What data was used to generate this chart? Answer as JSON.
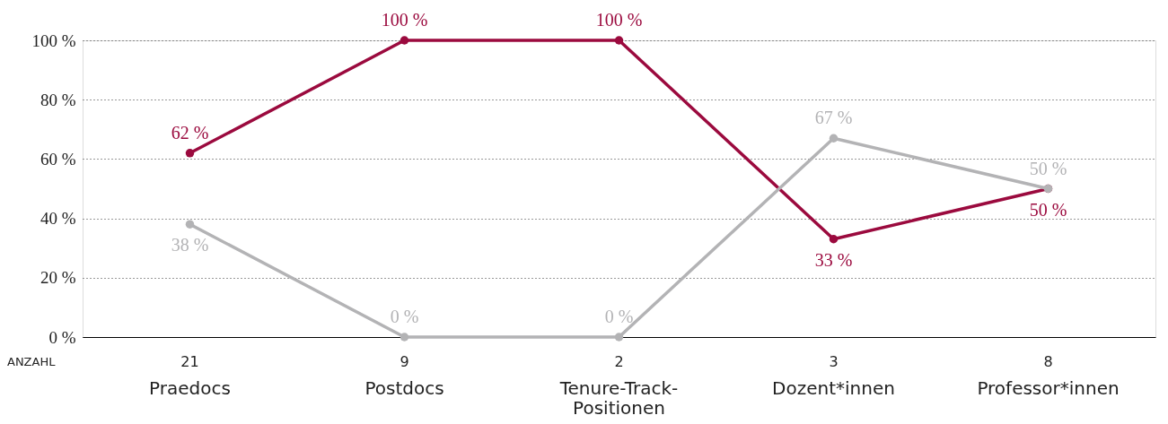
{
  "chart_data": {
    "type": "line",
    "categories": [
      "Praedocs",
      "Postdocs",
      "Tenure-Track-Positionen",
      "Dozent*innen",
      "Professor*innen"
    ],
    "series": [
      {
        "color": "#9b0a3e",
        "values": [
          62,
          100,
          100,
          33,
          50
        ],
        "value_labels": [
          "62 %",
          "100 %",
          "100 %",
          "33 %",
          "50 %"
        ]
      },
      {
        "color": "#b3b3b5",
        "values": [
          38,
          0,
          0,
          67,
          50
        ],
        "value_labels": [
          "38 %",
          "0 %",
          "0 %",
          "67 %",
          "50 %"
        ]
      }
    ],
    "ylim": [
      0,
      100
    ],
    "yticks": [
      {
        "value": 0,
        "label": "0 %"
      },
      {
        "value": 20,
        "label": "20 %"
      },
      {
        "value": 40,
        "label": "40 %"
      },
      {
        "value": 60,
        "label": "60 %"
      },
      {
        "value": 80,
        "label": "80 %"
      },
      {
        "value": 100,
        "label": "100 %"
      }
    ],
    "annotations": [
      "ANZAHL",
      "21",
      "9",
      "2",
      "3",
      "8"
    ],
    "grid": "y",
    "marker": "circle",
    "line_style": "solid"
  }
}
